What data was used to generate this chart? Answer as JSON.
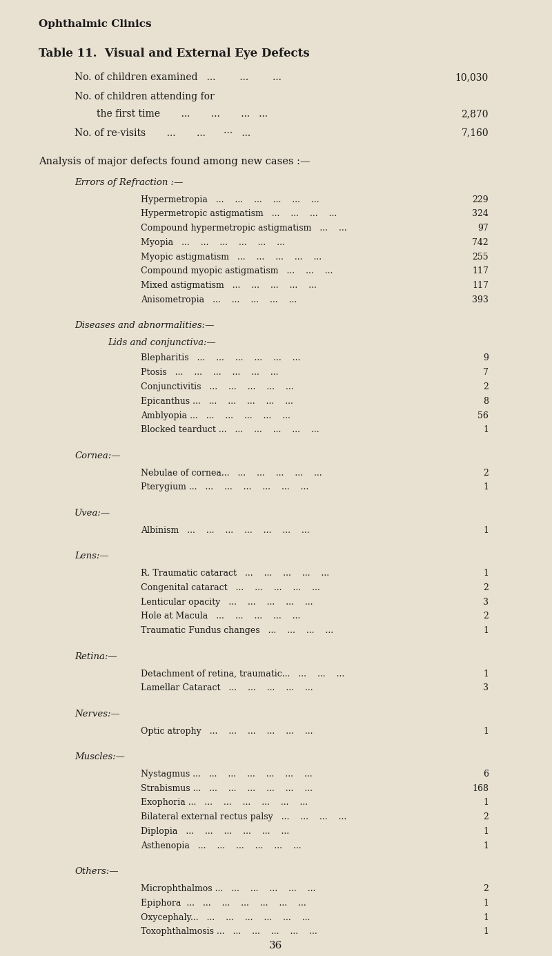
{
  "bg_color": "#e8e0d0",
  "text_color": "#1a1a1a",
  "page_number": "36",
  "header": "Ophthalmic Clinics",
  "title": "Table 11.  Visual and External Eye Defects",
  "analysis_header": "Analysis of major defects found among new cases :—",
  "sections": [
    {
      "section_label": "Errors of Refraction :—",
      "section_style": "italic",
      "subsections": [
        {
          "subsection_label": null,
          "items": [
            {
              "label": "Hypermetropia",
              "dots": "...    ...    ...    ...    ...    ...",
              "value": "229"
            },
            {
              "label": "Hypermetropic astigmatism",
              "dots": "...    ...    ...    ...",
              "value": "324"
            },
            {
              "label": "Compound hypermetropic astigmatism",
              "dots": "...    ...",
              "value": "97"
            },
            {
              "label": "Myopia",
              "dots": "...    ...    ...    ...    ...    ...",
              "value": "742"
            },
            {
              "label": "Myopic astigmatism",
              "dots": "...    ...    ...    ...    ...",
              "value": "255"
            },
            {
              "label": "Compound myopic astigmatism",
              "dots": "...    ...    ...",
              "value": "117"
            },
            {
              "label": "Mixed astigmatism",
              "dots": "...    ...    ...    ...    ...",
              "value": "117"
            },
            {
              "label": "Anisometropia",
              "dots": "...    ...    ...    ...    ...",
              "value": "393"
            }
          ]
        }
      ]
    },
    {
      "section_label": "Diseases and abnormalities:—",
      "section_style": "italic",
      "subsections": [
        {
          "subsection_label": "Lids and conjunctiva:—",
          "subsection_style": "italic",
          "items": [
            {
              "label": "Blepharitis",
              "dots": "...    ...    ...    ...    ...    ...",
              "value": "9"
            },
            {
              "label": "Ptosis",
              "dots": "...    ...    ...    ...    ...    ...",
              "value": "7"
            },
            {
              "label": "Conjunctivitis",
              "dots": "...    ...    ...    ...    ...",
              "value": "2"
            },
            {
              "label": "Epicanthus ...",
              "dots": "...    ...    ...    ...    ...",
              "value": "8"
            },
            {
              "label": "Amblyopia ...",
              "dots": "...    ...    ...    ...    ...",
              "value": "56"
            },
            {
              "label": "Blocked tearduct ...",
              "dots": "...    ...    ...    ...    ...",
              "value": "1"
            }
          ]
        }
      ]
    },
    {
      "section_label": "Cornea:—",
      "section_style": "italic",
      "subsections": [
        {
          "subsection_label": null,
          "items": [
            {
              "label": "Nebulae of cornea...",
              "dots": "...    ...    ...    ...    ...",
              "value": "2"
            },
            {
              "label": "Pterygium ...",
              "dots": "...    ...    ...    ...    ...    ...",
              "value": "1"
            }
          ]
        }
      ]
    },
    {
      "section_label": "Uvea:—",
      "section_style": "italic",
      "subsections": [
        {
          "subsection_label": null,
          "items": [
            {
              "label": "Albinism",
              "dots": "...    ...    ...    ...    ...    ...    ...",
              "value": "1"
            }
          ]
        }
      ]
    },
    {
      "section_label": "Lens:—",
      "section_style": "italic",
      "subsections": [
        {
          "subsection_label": null,
          "items": [
            {
              "label": "R. Traumatic cataract",
              "dots": "...    ...    ...    ...    ...",
              "value": "1"
            },
            {
              "label": "Congenital cataract",
              "dots": "...    ...    ...    ...    ...",
              "value": "2"
            },
            {
              "label": "Lenticular opacity",
              "dots": "...    ...    ...    ...    ...",
              "value": "3"
            },
            {
              "label": "Hole at Macula",
              "dots": "...    ...    ...    ...    ...",
              "value": "2"
            },
            {
              "label": "Traumatic Fundus changes",
              "dots": "...    ...    ...    ...",
              "value": "1"
            }
          ]
        }
      ]
    },
    {
      "section_label": "Retina:—",
      "section_style": "italic",
      "subsections": [
        {
          "subsection_label": null,
          "items": [
            {
              "label": "Detachment of retina, traumatic...",
              "dots": "...    ...    ...",
              "value": "1"
            },
            {
              "label": "Lamellar Cataract",
              "dots": "...    ...    ...    ...    ...",
              "value": "3"
            }
          ]
        }
      ]
    },
    {
      "section_label": "Nerves:—",
      "section_style": "italic",
      "subsections": [
        {
          "subsection_label": null,
          "items": [
            {
              "label": "Optic atrophy",
              "dots": "...    ...    ...    ...    ...    ...",
              "value": "1"
            }
          ]
        }
      ]
    },
    {
      "section_label": "Muscles:—",
      "section_style": "italic",
      "subsections": [
        {
          "subsection_label": null,
          "items": [
            {
              "label": "Nystagmus ...",
              "dots": "...    ...    ...    ...    ...    ...",
              "value": "6"
            },
            {
              "label": "Strabismus ...",
              "dots": "...    ...    ...    ...    ...    ...",
              "value": "168"
            },
            {
              "label": "Exophoria ...",
              "dots": "...    ...    ...    ...    ...    ...",
              "value": "1"
            },
            {
              "label": "Bilateral external rectus palsy",
              "dots": "...    ...    ...    ...",
              "value": "2"
            },
            {
              "label": "Diplopia",
              "dots": "...    ...    ...    ...    ...    ...",
              "value": "1"
            },
            {
              "label": "Asthenopia",
              "dots": "...    ...    ...    ...    ...    ...",
              "value": "1"
            }
          ]
        }
      ]
    },
    {
      "section_label": "Others:—",
      "section_style": "italic",
      "subsections": [
        {
          "subsection_label": null,
          "items": [
            {
              "label": "Microphthalmos ...",
              "dots": "...    ...    ...    ...    ...",
              "value": "2"
            },
            {
              "label": "Epiphora  ...",
              "dots": "...    ...    ...    ...    ...    ...",
              "value": "1"
            },
            {
              "label": "Oxycephaly...",
              "dots": "...    ...    ...    ...    ...    ...",
              "value": "1"
            },
            {
              "label": "Toxophthalmosis ...",
              "dots": "...    ...    ...    ...    ...",
              "value": "1"
            }
          ]
        }
      ]
    }
  ]
}
